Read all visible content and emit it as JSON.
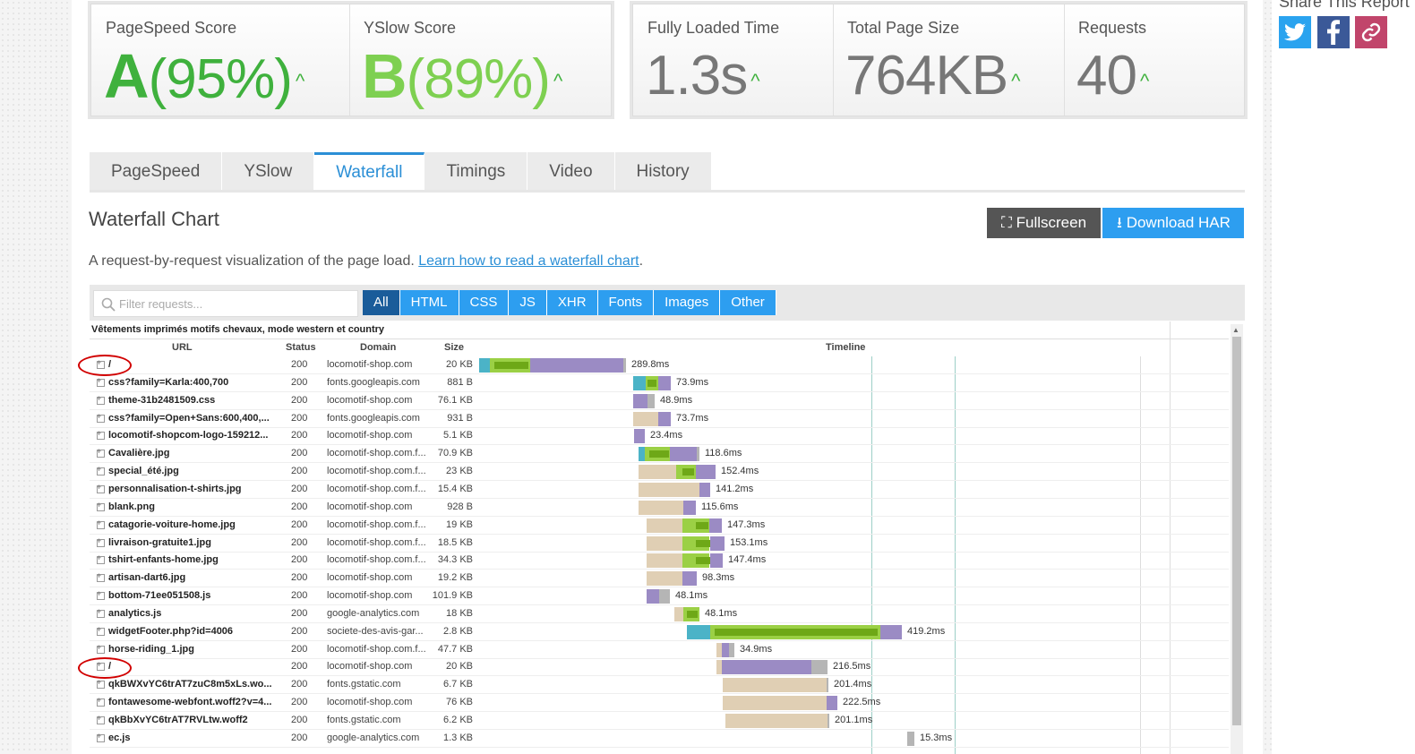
{
  "scores": {
    "pagespeed": {
      "label": "PageSpeed Score",
      "grade": "A",
      "pct": "(95%)"
    },
    "yslow": {
      "label": "YSlow Score",
      "grade": "B",
      "pct": "(89%)"
    },
    "loaded": {
      "label": "Fully Loaded Time",
      "value": "1.3s"
    },
    "size": {
      "label": "Total Page Size",
      "value": "764KB"
    },
    "requests": {
      "label": "Requests",
      "value": "40"
    }
  },
  "share": {
    "title": "Share This Report"
  },
  "tabs": [
    "PageSpeed",
    "YSlow",
    "Waterfall",
    "Timings",
    "Video",
    "History"
  ],
  "section": {
    "title": "Waterfall Chart",
    "fullscreen": "Fullscreen",
    "download": "Download HAR",
    "desc": "A request-by-request visualization of the page load. ",
    "link": "Learn how to read a waterfall chart",
    "link_tail": "."
  },
  "filter": {
    "placeholder": "Filter requests...",
    "buttons": [
      "All",
      "HTML",
      "CSS",
      "JS",
      "XHR",
      "Fonts",
      "Images",
      "Other"
    ]
  },
  "waterfall": {
    "site_title": "Vêtements imprimés motifs chevaux, mode western et country",
    "headers": {
      "url": "URL",
      "status": "Status",
      "domain": "Domain",
      "size": "Size",
      "timeline": "Timeline"
    },
    "rows": [
      {
        "url": "/",
        "status": "200",
        "domain": "locomotif-shop.com",
        "size": "20 KB",
        "time": "289.8ms"
      },
      {
        "url": "css?family=Karla:400,700",
        "status": "200",
        "domain": "fonts.googleapis.com",
        "size": "881 B",
        "time": "73.9ms"
      },
      {
        "url": "theme-31b2481509.css",
        "status": "200",
        "domain": "locomotif-shop.com",
        "size": "76.1 KB",
        "time": "48.9ms"
      },
      {
        "url": "css?family=Open+Sans:600,400,...",
        "status": "200",
        "domain": "fonts.googleapis.com",
        "size": "931 B",
        "time": "73.7ms"
      },
      {
        "url": "locomotif-shopcom-logo-159212...",
        "status": "200",
        "domain": "locomotif-shop.com",
        "size": "5.1 KB",
        "time": "23.4ms"
      },
      {
        "url": "Cavalière.jpg",
        "status": "200",
        "domain": "locomotif-shop.com.f...",
        "size": "70.9 KB",
        "time": "118.6ms"
      },
      {
        "url": "special_été.jpg",
        "status": "200",
        "domain": "locomotif-shop.com.f...",
        "size": "23 KB",
        "time": "152.4ms"
      },
      {
        "url": "personnalisation-t-shirts.jpg",
        "status": "200",
        "domain": "locomotif-shop.com.f...",
        "size": "15.4 KB",
        "time": "141.2ms"
      },
      {
        "url": "blank.png",
        "status": "200",
        "domain": "locomotif-shop.com",
        "size": "928 B",
        "time": "115.6ms"
      },
      {
        "url": "catagorie-voiture-home.jpg",
        "status": "200",
        "domain": "locomotif-shop.com.f...",
        "size": "19 KB",
        "time": "147.3ms"
      },
      {
        "url": "livraison-gratuite1.jpg",
        "status": "200",
        "domain": "locomotif-shop.com.f...",
        "size": "18.5 KB",
        "time": "153.1ms"
      },
      {
        "url": "tshirt-enfants-home.jpg",
        "status": "200",
        "domain": "locomotif-shop.com.f...",
        "size": "34.3 KB",
        "time": "147.4ms"
      },
      {
        "url": "artisan-dart6.jpg",
        "status": "200",
        "domain": "locomotif-shop.com",
        "size": "19.2 KB",
        "time": "98.3ms"
      },
      {
        "url": "bottom-71ee051508.js",
        "status": "200",
        "domain": "locomotif-shop.com",
        "size": "101.9 KB",
        "time": "48.1ms"
      },
      {
        "url": "analytics.js",
        "status": "200",
        "domain": "google-analytics.com",
        "size": "18 KB",
        "time": "48.1ms"
      },
      {
        "url": "widgetFooter.php?id=4006",
        "status": "200",
        "domain": "societe-des-avis-gar...",
        "size": "2.8 KB",
        "time": "419.2ms"
      },
      {
        "url": "horse-riding_1.jpg",
        "status": "200",
        "domain": "locomotif-shop.com.f...",
        "size": "47.7 KB",
        "time": "34.9ms"
      },
      {
        "url": "/",
        "status": "200",
        "domain": "locomotif-shop.com",
        "size": "20 KB",
        "time": "216.5ms"
      },
      {
        "url": "qkBWXvYC6trAT7zuC8m5xLs.wo...",
        "status": "200",
        "domain": "fonts.gstatic.com",
        "size": "6.7 KB",
        "time": "201.4ms"
      },
      {
        "url": "fontawesome-webfont.woff2?v=4...",
        "status": "200",
        "domain": "locomotif-shop.com",
        "size": "76 KB",
        "time": "222.5ms"
      },
      {
        "url": "qkBbXvYC6trAT7RVLtw.woff2",
        "status": "200",
        "domain": "fonts.gstatic.com",
        "size": "6.2 KB",
        "time": "201.1ms"
      },
      {
        "url": "ec.js",
        "status": "200",
        "domain": "google-analytics.com",
        "size": "1.3 KB",
        "time": "15.3ms"
      }
    ]
  },
  "colors": {
    "dns": "#4bb3c7",
    "connect": "#f2a33c",
    "wait": "#9bd045",
    "waitdark": "#6ea817",
    "receive": "#9b8bc4",
    "blocked": "#e0cfb4",
    "ssl": "#b5b5b5"
  }
}
